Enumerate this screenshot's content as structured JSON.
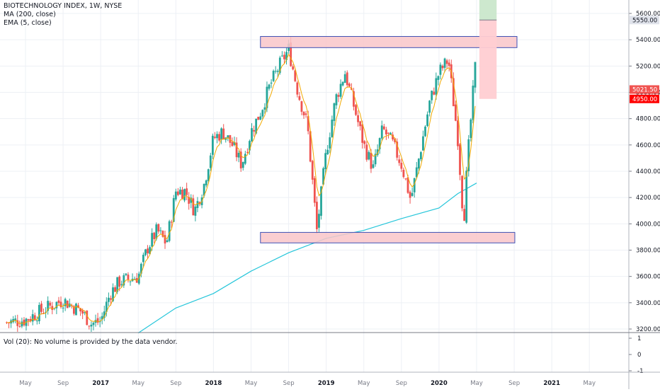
{
  "chart_data": {
    "type": "candlestick",
    "title": "BIOTECHNOLOGY INDEX, 1W, NYSE",
    "indicators": [
      {
        "name": "MA (200, close)",
        "color": "#26c6da"
      },
      {
        "name": "EMA (5, close)",
        "color": "#f2a900"
      }
    ],
    "volume_note": "Vol (20): No volume is provided by the data vendor.",
    "ylim": [
      3170,
      5700
    ],
    "y_ticks": [
      5600,
      5400,
      5200,
      5000,
      4800,
      4600,
      4400,
      4200,
      4000,
      3800,
      3600,
      3400,
      3200
    ],
    "y_tick_labels": [
      "5600.00",
      "5400.00",
      "5200.00",
      "5000.00",
      "4800.00",
      "4600.00",
      "4400.00",
      "4200.00",
      "4000.00",
      "3800.00",
      "3600.00",
      "3400.00",
      "3200.00"
    ],
    "x_ticks": [
      {
        "date": "2016-05",
        "label": "May"
      },
      {
        "date": "2016-09",
        "label": "Sep"
      },
      {
        "date": "2017-01",
        "label": "2017",
        "bold": true
      },
      {
        "date": "2017-05",
        "label": "May"
      },
      {
        "date": "2017-09",
        "label": "Sep"
      },
      {
        "date": "2018-01",
        "label": "2018",
        "bold": true
      },
      {
        "date": "2018-05",
        "label": "May"
      },
      {
        "date": "2018-09",
        "label": "Sep"
      },
      {
        "date": "2019-01",
        "label": "2019",
        "bold": true
      },
      {
        "date": "2019-05",
        "label": "May"
      },
      {
        "date": "2019-09",
        "label": "Sep"
      },
      {
        "date": "2020-01",
        "label": "2020",
        "bold": true
      },
      {
        "date": "2020-05",
        "label": "May"
      },
      {
        "date": "2020-09",
        "label": "Sep"
      },
      {
        "date": "2021-01",
        "label": "2021",
        "bold": true
      },
      {
        "date": "2021-05",
        "label": "May"
      }
    ],
    "close_path": [
      [
        "2016-03",
        3250
      ],
      [
        "2016-05",
        3270
      ],
      [
        "2016-07",
        3350
      ],
      [
        "2016-09",
        3420
      ],
      [
        "2016-11",
        3330
      ],
      [
        "2016-12",
        3240
      ],
      [
        "2017-01",
        3260
      ],
      [
        "2017-02",
        3470
      ],
      [
        "2017-03",
        3560
      ],
      [
        "2017-05",
        3600
      ],
      [
        "2017-06",
        3820
      ],
      [
        "2017-07",
        3950
      ],
      [
        "2017-08",
        3850
      ],
      [
        "2017-09",
        4250
      ],
      [
        "2017-10",
        4250
      ],
      [
        "2017-11",
        4100
      ],
      [
        "2017-12",
        4300
      ],
      [
        "2018-01",
        4650
      ],
      [
        "2018-02",
        4700
      ],
      [
        "2018-03",
        4600
      ],
      [
        "2018-04",
        4450
      ],
      [
        "2018-05",
        4700
      ],
      [
        "2018-06",
        4850
      ],
      [
        "2018-07",
        5050
      ],
      [
        "2018-08",
        5200
      ],
      [
        "2018-09",
        5330
      ],
      [
        "2018-10",
        5000
      ],
      [
        "2018-11",
        4750
      ],
      [
        "2018-12",
        3950
      ],
      [
        "2019-01",
        4550
      ],
      [
        "2019-02",
        4950
      ],
      [
        "2019-03",
        5150
      ],
      [
        "2019-04",
        4880
      ],
      [
        "2019-05",
        4600
      ],
      [
        "2019-06",
        4420
      ],
      [
        "2019-07",
        4720
      ],
      [
        "2019-08",
        4620
      ],
      [
        "2019-09",
        4450
      ],
      [
        "2019-10",
        4180
      ],
      [
        "2019-11",
        4550
      ],
      [
        "2019-12",
        4920
      ],
      [
        "2020-01",
        5150
      ],
      [
        "2020-02",
        5250
      ],
      [
        "2020-03",
        4650
      ],
      [
        "2020-03-20",
        4000
      ],
      [
        "2020-04",
        4450
      ],
      [
        "2020-04-20",
        5000
      ],
      [
        "2020-05-01",
        5320
      ]
    ],
    "ma200_path": [
      [
        "2017-05",
        3170
      ],
      [
        "2017-09",
        3360
      ],
      [
        "2018-01",
        3470
      ],
      [
        "2018-05",
        3640
      ],
      [
        "2018-09",
        3780
      ],
      [
        "2019-01",
        3890
      ],
      [
        "2019-05",
        3950
      ],
      [
        "2019-09",
        4040
      ],
      [
        "2020-01",
        4120
      ],
      [
        "2020-03",
        4230
      ],
      [
        "2020-05",
        4310
      ]
    ],
    "annotations": [
      {
        "type": "zone",
        "from": "2018-06",
        "to": "2020-09-10",
        "y_low": 5340,
        "y_high": 5425,
        "label": ""
      },
      {
        "type": "zone",
        "from": "2018-06",
        "to": "2020-09-03",
        "y_low": 3855,
        "y_high": 3935,
        "label": ""
      },
      {
        "type": "position",
        "from": "2020-05-10",
        "to": "2020-07-05",
        "entry": 5550,
        "target": 5700,
        "stop": 4950
      }
    ],
    "price_labels": [
      {
        "value": 5550,
        "text": "5550.00",
        "bg": "#e0e3eb",
        "color": "#131722"
      },
      {
        "value": 5021.5,
        "text": "5021.50",
        "bg": "#f05350",
        "color": "#ffffff"
      },
      {
        "value": 4950,
        "text": "4950.00",
        "bg": "#ff0000",
        "color": "#ffffff"
      }
    ],
    "volume_scale": {
      "labels": [
        "1",
        "0",
        "-1"
      ]
    },
    "colors": {
      "up": "#26a69a",
      "down": "#ef5350",
      "grid": "#edf0f5",
      "axis": "#787b86",
      "zone_fill": "#f9c6c9",
      "zone_border": "#3f51b5",
      "target_fill": "#c8e6c9",
      "stop_fill": "#ffcdd2"
    }
  }
}
